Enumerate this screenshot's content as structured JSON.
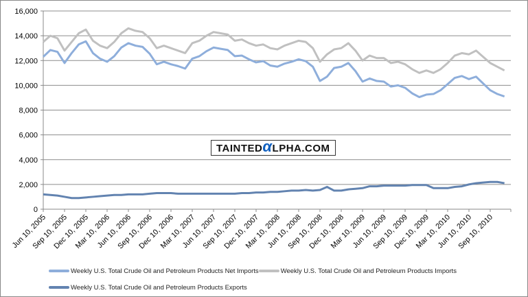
{
  "chart_data": {
    "type": "line",
    "title": "",
    "xlabel": "",
    "ylabel": "",
    "ylim": [
      0,
      16000
    ],
    "yticks": [
      "0",
      "2,000",
      "4,000",
      "6,000",
      "8,000",
      "10,000",
      "12,000",
      "14,000",
      "16,000"
    ],
    "xticks": [
      "Jun 10, 2005",
      "Sep 10, 2005",
      "Dec 10, 2005",
      "Mar 10, 2006",
      "Jun 10, 2006",
      "Sep 10, 2006",
      "Dec 10, 2006",
      "Mar 10, 2007",
      "Jun 10, 2007",
      "Sep 10, 2007",
      "Dec 10, 2007",
      "Mar 10, 2008",
      "Jun 10, 2008",
      "Sep 10, 2008",
      "Dec 10, 2008",
      "Mar 10, 2009",
      "Jun 10, 2009",
      "Sep 10, 2009",
      "Dec 10, 2009",
      "Mar 10, 2010",
      "Jun 10, 2010",
      "Sep 10, 2010"
    ],
    "grid": true,
    "legend_position": "bottom",
    "series": [
      {
        "name": "Weekly U.S. Total Crude Oil and Petroleum Products Imports",
        "color": "#c0c0c0",
        "values": [
          13500,
          14000,
          13800,
          12800,
          13500,
          14200,
          14500,
          13600,
          13200,
          13000,
          13500,
          14200,
          14600,
          14400,
          14300,
          13800,
          13000,
          13200,
          13000,
          12800,
          12600,
          13400,
          13600,
          14000,
          14300,
          14200,
          14100,
          13600,
          13700,
          13400,
          13200,
          13300,
          13000,
          12900,
          13200,
          13400,
          13600,
          13500,
          13000,
          11900,
          12500,
          12900,
          13000,
          13400,
          12800,
          12000,
          12400,
          12200,
          12200,
          11800,
          11900,
          11700,
          11300,
          11000,
          11200,
          11000,
          11300,
          11800,
          12400,
          12600,
          12500,
          12800,
          12300,
          11800,
          11500,
          11200
        ]
      },
      {
        "name": "Weekly U.S. Total Crude Oil and Petroleum Products Net Imports",
        "color": "#8eaedb",
        "values": [
          12300,
          12850,
          12700,
          11800,
          12600,
          13300,
          13550,
          12600,
          12150,
          11900,
          12350,
          13050,
          13400,
          13200,
          13100,
          12550,
          11700,
          11900,
          11700,
          11550,
          11350,
          12150,
          12350,
          12750,
          13050,
          12950,
          12850,
          12350,
          12400,
          12100,
          11850,
          11950,
          11600,
          11500,
          11750,
          11900,
          12100,
          11950,
          11500,
          10350,
          10700,
          11400,
          11500,
          11800,
          11150,
          10300,
          10550,
          10350,
          10300,
          9900,
          10000,
          9800,
          9350,
          9050,
          9250,
          9300,
          9600,
          10100,
          10600,
          10750,
          10500,
          10700,
          10150,
          9600,
          9300,
          9100
        ]
      },
      {
        "name": "Weekly U.S. Total Crude Oil and Petroleum Products Exports",
        "color": "#6283b0",
        "values": [
          1200,
          1150,
          1100,
          1000,
          900,
          900,
          950,
          1000,
          1050,
          1100,
          1150,
          1150,
          1200,
          1200,
          1200,
          1250,
          1300,
          1300,
          1300,
          1250,
          1250,
          1250,
          1250,
          1250,
          1250,
          1250,
          1250,
          1250,
          1300,
          1300,
          1350,
          1350,
          1400,
          1400,
          1450,
          1500,
          1500,
          1550,
          1500,
          1550,
          1800,
          1500,
          1500,
          1600,
          1650,
          1700,
          1850,
          1850,
          1900,
          1900,
          1900,
          1900,
          1950,
          1950,
          1950,
          1700,
          1700,
          1700,
          1800,
          1850,
          2000,
          2100,
          2150,
          2200,
          2200,
          2100
        ]
      }
    ]
  },
  "legend": {
    "net": "Weekly U.S. Total Crude Oil and Petroleum Products Net Imports",
    "imports": "Weekly U.S. Total Crude Oil and Petroleum Products Imports",
    "exports": "Weekly U.S. Total Crude Oil and Petroleum Products Exports"
  },
  "watermark": {
    "pre": "TAINTED",
    "alpha": "α",
    "post": "LPHA.COM"
  }
}
